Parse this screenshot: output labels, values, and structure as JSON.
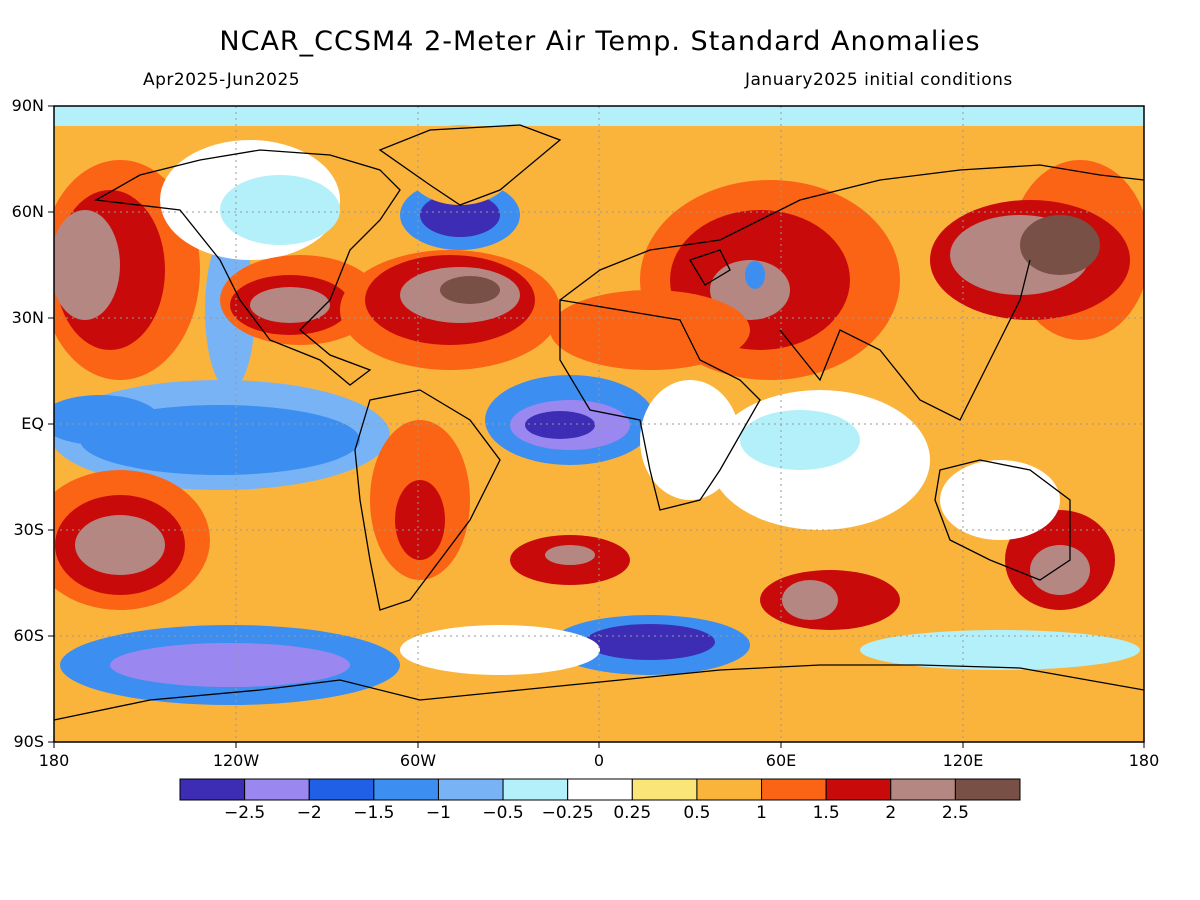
{
  "title": "NCAR_CCSM4 2-Meter Air Temp. Standard Anomalies",
  "period": "Apr2025-Jun2025",
  "init": "January2025 initial conditions",
  "lat_labels": [
    "90N",
    "60N",
    "30N",
    "EQ",
    "30S",
    "60S",
    "90S"
  ],
  "lon_labels": [
    "180",
    "120W",
    "60W",
    "0",
    "60E",
    "120E",
    "180"
  ],
  "colorbar": {
    "colors": [
      "#3c2db4",
      "#9b87f0",
      "#1f60e6",
      "#3c8ff0",
      "#78b4f5",
      "#b4f0fa",
      "#ffffff",
      "#fae678",
      "#fab43c",
      "#fa6414",
      "#c80a0a",
      "#b48782",
      "#785046"
    ],
    "labels": [
      "-2.5",
      "-2",
      "-1.5",
      "-1",
      "-0.5",
      "-0.25",
      "0.25",
      "0.5",
      "1",
      "1.5",
      "2",
      "2.5"
    ]
  }
}
